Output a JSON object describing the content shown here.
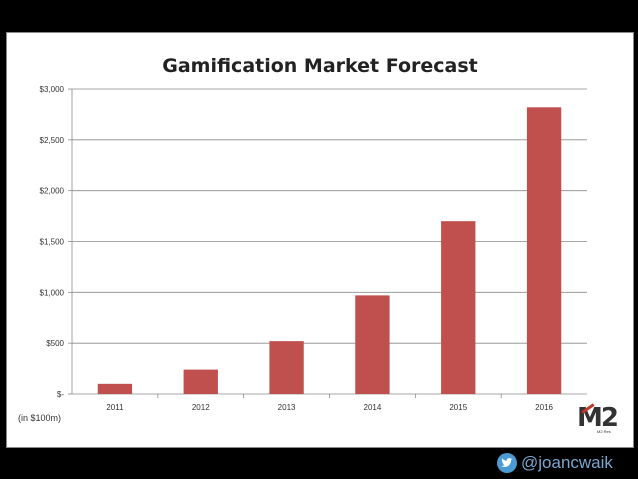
{
  "chart_data": {
    "type": "bar",
    "title": "Gamification Market Forecast",
    "categories": [
      "2011",
      "2012",
      "2013",
      "2014",
      "2015",
      "2016"
    ],
    "values": [
      100,
      240,
      520,
      970,
      1700,
      2820
    ],
    "ylim": [
      0,
      3000
    ],
    "yticks": [
      0,
      500,
      1000,
      1500,
      2000,
      2500,
      3000
    ],
    "ytick_labels": [
      "$-",
      "$500",
      "$1,000",
      "$1,500",
      "$2,000",
      "$2,500",
      "$3,000"
    ],
    "unit_note": "(in $100m)",
    "grid": true,
    "bar_color": "#c0504d"
  },
  "logo": {
    "main": "M2",
    "sub": "M2 Res"
  },
  "watermark": {
    "handle": "@joancwaik",
    "icon": "twitter-bird-icon",
    "color": "#4a9bd4"
  }
}
